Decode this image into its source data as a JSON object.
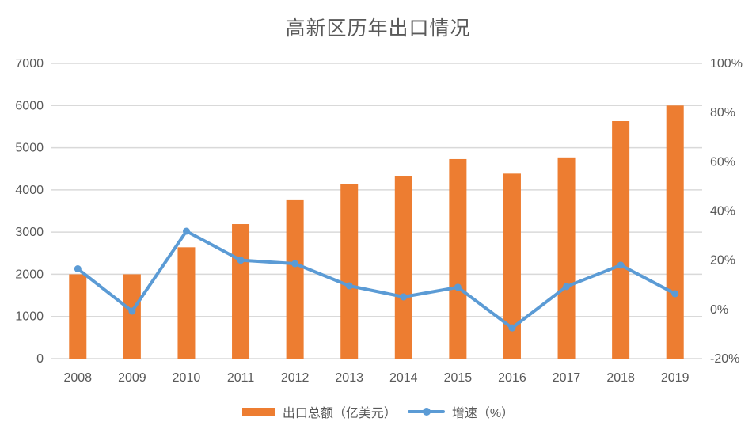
{
  "chart_data": {
    "type": "bar+line combo",
    "title": "高新区历年出口情况",
    "categories": [
      "2008",
      "2009",
      "2010",
      "2011",
      "2012",
      "2013",
      "2014",
      "2015",
      "2016",
      "2017",
      "2018",
      "2019"
    ],
    "series": [
      {
        "name": "出口总额（亿美元）",
        "type": "bar",
        "axis": "left",
        "color": "#ED7D31",
        "values": [
          2000,
          2000,
          2640,
          3190,
          3755,
          4130,
          4335,
          4730,
          4385,
          4770,
          5630,
          6000
        ]
      },
      {
        "name": "增速（%）",
        "type": "line",
        "axis": "right",
        "color": "#5B9BD5",
        "values": [
          16.5,
          -0.7,
          31.8,
          20.0,
          18.6,
          9.6,
          5.1,
          9.0,
          -7.5,
          9.3,
          18.0,
          6.4
        ]
      }
    ],
    "left_axis": {
      "min": 0,
      "max": 7000,
      "step": 1000,
      "ticks": [
        "0",
        "1000",
        "2000",
        "3000",
        "4000",
        "5000",
        "6000",
        "7000"
      ]
    },
    "right_axis": {
      "min": -20,
      "max": 100,
      "step": 20,
      "ticks": [
        "-20%",
        "0%",
        "20%",
        "40%",
        "60%",
        "80%",
        "100%"
      ]
    },
    "grid": true,
    "legend_position": "bottom",
    "colors": {
      "bar": "#ED7D31",
      "line": "#5B9BD5",
      "gridline": "#D9D9D9",
      "text": "#595959",
      "background": "#FFFFFF"
    }
  }
}
